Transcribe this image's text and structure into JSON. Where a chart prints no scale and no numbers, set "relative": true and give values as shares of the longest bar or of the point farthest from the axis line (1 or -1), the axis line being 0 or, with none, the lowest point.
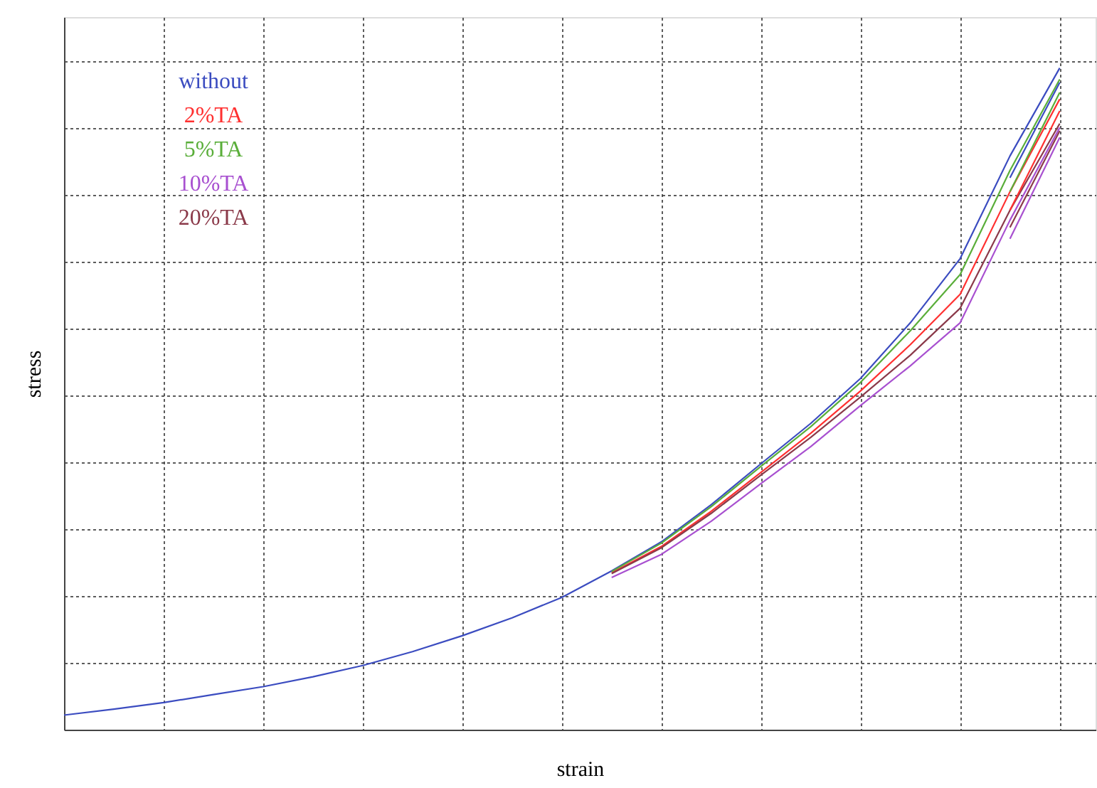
{
  "chart_data": {
    "type": "line",
    "relative": true,
    "xlabel": "strain",
    "ylabel": "stress",
    "categories": [
      null,
      null,
      null,
      null,
      null,
      null,
      null,
      null,
      null,
      null,
      null,
      null,
      null,
      null,
      null,
      null,
      null,
      null,
      null,
      null,
      null
    ],
    "tick_labels": false,
    "grid": true,
    "marker": "none",
    "line_style": "solid",
    "series": [
      {
        "name": "without",
        "color": "#3b4cc0",
        "values": [
          0.022,
          0.031,
          0.041,
          0.053,
          0.065,
          0.08,
          0.097,
          0.118,
          0.142,
          0.169,
          0.2,
          0.24,
          0.284,
          0.34,
          0.402,
          0.463,
          0.531,
          0.615,
          0.712,
          0.867,
          1.0
        ]
      },
      {
        "name": "2%TA",
        "color": "#ff3030",
        "values": [
          null,
          null,
          null,
          null,
          null,
          null,
          null,
          null,
          null,
          null,
          null,
          0.237,
          0.277,
          0.33,
          0.389,
          0.448,
          0.512,
          0.582,
          0.658,
          0.813,
          0.953
        ]
      },
      {
        "name": "5%TA",
        "color": "#5aae3a",
        "values": [
          null,
          null,
          null,
          null,
          null,
          null,
          null,
          null,
          null,
          null,
          null,
          0.239,
          0.282,
          0.337,
          0.398,
          0.458,
          0.525,
          0.603,
          0.688,
          0.845,
          0.983
        ]
      },
      {
        "name": "10%TA",
        "color": "#a850d0",
        "values": [
          null,
          null,
          null,
          null,
          null,
          null,
          null,
          null,
          null,
          null,
          null,
          0.23,
          0.265,
          0.315,
          0.372,
          0.428,
          0.49,
          0.55,
          0.615,
          0.77,
          0.91
        ]
      },
      {
        "name": "20%TA",
        "color": "#8b3a4a",
        "values": [
          null,
          null,
          null,
          null,
          null,
          null,
          null,
          null,
          null,
          null,
          null,
          0.236,
          0.275,
          0.327,
          0.385,
          0.442,
          0.503,
          0.566,
          0.637,
          0.785,
          0.916
        ]
      },
      {
        "color": "#3b4cc0",
        "values": [
          null,
          null,
          null,
          null,
          null,
          null,
          null,
          null,
          null,
          null,
          null,
          null,
          null,
          null,
          null,
          null,
          null,
          null,
          null,
          0.834,
          0.978
        ]
      },
      {
        "color": "#ff3030",
        "values": [
          null,
          null,
          null,
          null,
          null,
          null,
          null,
          null,
          null,
          null,
          null,
          null,
          null,
          null,
          null,
          null,
          null,
          null,
          null,
          0.785,
          0.935
        ]
      },
      {
        "color": "#5aae3a",
        "values": [
          null,
          null,
          null,
          null,
          null,
          null,
          null,
          null,
          null,
          null,
          null,
          null,
          null,
          null,
          null,
          null,
          null,
          null,
          null,
          0.813,
          0.963
        ]
      },
      {
        "color": "#a850d0",
        "values": [
          null,
          null,
          null,
          null,
          null,
          null,
          null,
          null,
          null,
          null,
          null,
          null,
          null,
          null,
          null,
          null,
          null,
          null,
          null,
          0.742,
          0.895
        ]
      },
      {
        "color": "#8b3a4a",
        "values": [
          null,
          null,
          null,
          null,
          null,
          null,
          null,
          null,
          null,
          null,
          null,
          null,
          null,
          null,
          null,
          null,
          null,
          null,
          null,
          0.759,
          0.905
        ]
      }
    ]
  }
}
